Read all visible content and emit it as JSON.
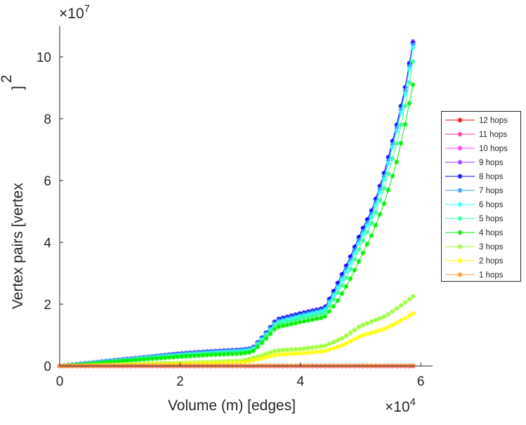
{
  "chart_data": {
    "type": "line",
    "title": "",
    "xlabel": "Volume (m) [edges]",
    "ylabel": "Vertex pairs [vertex",
    "ylabel_superscript": "2",
    "ylabel_close": "]",
    "x_multiplier": "×10",
    "x_multiplier_exp": "4",
    "y_multiplier": "×10",
    "y_multiplier_exp": "7",
    "xlim": [
      0,
      6.2
    ],
    "ylim": [
      0,
      11
    ],
    "xticks": [
      "0",
      "2",
      "4",
      "6"
    ],
    "yticks": [
      "0",
      "2",
      "4",
      "6",
      "8",
      "10"
    ],
    "grid": false,
    "legend_position": "right",
    "series": [
      {
        "name": "12 hops",
        "color": "#ff0000",
        "knots": [
          [
            0,
            0
          ],
          [
            5.87,
            0
          ]
        ]
      },
      {
        "name": "11 hops",
        "color": "#ff3399",
        "knots": [
          [
            0,
            0
          ],
          [
            5.87,
            0
          ]
        ]
      },
      {
        "name": "10 hops",
        "color": "#ff33ff",
        "knots": [
          [
            0,
            0
          ],
          [
            5.87,
            0
          ]
        ]
      },
      {
        "name": "9 hops",
        "color": "#9933ff",
        "knots": [
          [
            0,
            0
          ],
          [
            0.5,
            0.1
          ],
          [
            1,
            0.2
          ],
          [
            1.5,
            0.3
          ],
          [
            2,
            0.4
          ],
          [
            2.5,
            0.47
          ],
          [
            3,
            0.52
          ],
          [
            3.2,
            0.57
          ],
          [
            3.4,
            1.0
          ],
          [
            3.6,
            1.5
          ],
          [
            4,
            1.7
          ],
          [
            4.4,
            1.88
          ],
          [
            4.6,
            2.6
          ],
          [
            4.8,
            3.4
          ],
          [
            5,
            4.3
          ],
          [
            5.2,
            5.1
          ],
          [
            5.4,
            6.3
          ],
          [
            5.6,
            7.8
          ],
          [
            5.75,
            9.1
          ],
          [
            5.87,
            10.5
          ]
        ]
      },
      {
        "name": "8 hops",
        "color": "#0000ff",
        "knots": [
          [
            0,
            0
          ],
          [
            0.5,
            0.1
          ],
          [
            1,
            0.2
          ],
          [
            1.5,
            0.3
          ],
          [
            2,
            0.4
          ],
          [
            2.5,
            0.47
          ],
          [
            3,
            0.52
          ],
          [
            3.2,
            0.57
          ],
          [
            3.4,
            1.0
          ],
          [
            3.6,
            1.5
          ],
          [
            4,
            1.7
          ],
          [
            4.4,
            1.87
          ],
          [
            4.6,
            2.6
          ],
          [
            4.8,
            3.4
          ],
          [
            5,
            4.3
          ],
          [
            5.2,
            5.1
          ],
          [
            5.4,
            6.3
          ],
          [
            5.6,
            7.8
          ],
          [
            5.75,
            9.1
          ],
          [
            5.87,
            10.45
          ]
        ]
      },
      {
        "name": "7 hops",
        "color": "#3399ff",
        "knots": [
          [
            0,
            0
          ],
          [
            0.5,
            0.09
          ],
          [
            1,
            0.19
          ],
          [
            1.5,
            0.29
          ],
          [
            2,
            0.38
          ],
          [
            2.5,
            0.45
          ],
          [
            3,
            0.5
          ],
          [
            3.2,
            0.55
          ],
          [
            3.4,
            0.97
          ],
          [
            3.6,
            1.45
          ],
          [
            4,
            1.65
          ],
          [
            4.4,
            1.83
          ],
          [
            4.6,
            2.5
          ],
          [
            4.8,
            3.3
          ],
          [
            5,
            4.2
          ],
          [
            5.2,
            5.0
          ],
          [
            5.4,
            6.2
          ],
          [
            5.6,
            7.7
          ],
          [
            5.75,
            9.0
          ],
          [
            5.87,
            10.4
          ]
        ]
      },
      {
        "name": "6 hops",
        "color": "#33ffff",
        "knots": [
          [
            0,
            0
          ],
          [
            0.5,
            0.09
          ],
          [
            1,
            0.18
          ],
          [
            1.5,
            0.28
          ],
          [
            2,
            0.36
          ],
          [
            2.5,
            0.43
          ],
          [
            3,
            0.48
          ],
          [
            3.2,
            0.53
          ],
          [
            3.4,
            0.94
          ],
          [
            3.6,
            1.4
          ],
          [
            4,
            1.6
          ],
          [
            4.4,
            1.78
          ],
          [
            4.6,
            2.45
          ],
          [
            4.8,
            3.2
          ],
          [
            5,
            4.1
          ],
          [
            5.2,
            4.9
          ],
          [
            5.4,
            6.1
          ],
          [
            5.6,
            7.6
          ],
          [
            5.75,
            8.9
          ],
          [
            5.87,
            10.3
          ]
        ]
      },
      {
        "name": "5 hops",
        "color": "#33ff99",
        "knots": [
          [
            0,
            0
          ],
          [
            0.5,
            0.08
          ],
          [
            1,
            0.17
          ],
          [
            1.5,
            0.26
          ],
          [
            2,
            0.34
          ],
          [
            2.5,
            0.4
          ],
          [
            3,
            0.45
          ],
          [
            3.2,
            0.5
          ],
          [
            3.4,
            0.9
          ],
          [
            3.6,
            1.35
          ],
          [
            4,
            1.53
          ],
          [
            4.4,
            1.7
          ],
          [
            4.6,
            2.3
          ],
          [
            4.8,
            3.0
          ],
          [
            5,
            3.9
          ],
          [
            5.2,
            4.7
          ],
          [
            5.4,
            5.8
          ],
          [
            5.6,
            7.2
          ],
          [
            5.75,
            8.5
          ],
          [
            5.87,
            9.85
          ]
        ]
      },
      {
        "name": "4 hops",
        "color": "#00ee00",
        "knots": [
          [
            0,
            0
          ],
          [
            0.5,
            0.07
          ],
          [
            1,
            0.15
          ],
          [
            1.5,
            0.23
          ],
          [
            2,
            0.3
          ],
          [
            2.5,
            0.36
          ],
          [
            3,
            0.4
          ],
          [
            3.2,
            0.45
          ],
          [
            3.4,
            0.82
          ],
          [
            3.6,
            1.25
          ],
          [
            4,
            1.42
          ],
          [
            4.4,
            1.58
          ],
          [
            4.6,
            2.05
          ],
          [
            4.8,
            2.7
          ],
          [
            5,
            3.5
          ],
          [
            5.2,
            4.3
          ],
          [
            5.4,
            5.3
          ],
          [
            5.6,
            6.6
          ],
          [
            5.75,
            7.9
          ],
          [
            5.87,
            9.1
          ]
        ]
      },
      {
        "name": "3 hops",
        "color": "#99ff33",
        "knots": [
          [
            0,
            0
          ],
          [
            1,
            0.05
          ],
          [
            2,
            0.1
          ],
          [
            3,
            0.16
          ],
          [
            3.3,
            0.3
          ],
          [
            3.6,
            0.5
          ],
          [
            4,
            0.55
          ],
          [
            4.4,
            0.65
          ],
          [
            4.7,
            0.9
          ],
          [
            5,
            1.3
          ],
          [
            5.4,
            1.6
          ],
          [
            5.7,
            2.0
          ],
          [
            5.87,
            2.25
          ]
        ]
      },
      {
        "name": "2 hops",
        "color": "#ffff00",
        "knots": [
          [
            0,
            0
          ],
          [
            1,
            0.03
          ],
          [
            2,
            0.07
          ],
          [
            3,
            0.11
          ],
          [
            3.3,
            0.22
          ],
          [
            3.6,
            0.37
          ],
          [
            4,
            0.41
          ],
          [
            4.4,
            0.48
          ],
          [
            4.7,
            0.67
          ],
          [
            5,
            0.97
          ],
          [
            5.4,
            1.2
          ],
          [
            5.7,
            1.5
          ],
          [
            5.87,
            1.7
          ]
        ]
      },
      {
        "name": "1 hops",
        "color": "#ff9933",
        "knots": [
          [
            0,
            0
          ],
          [
            5.87,
            0.01
          ]
        ]
      }
    ]
  }
}
